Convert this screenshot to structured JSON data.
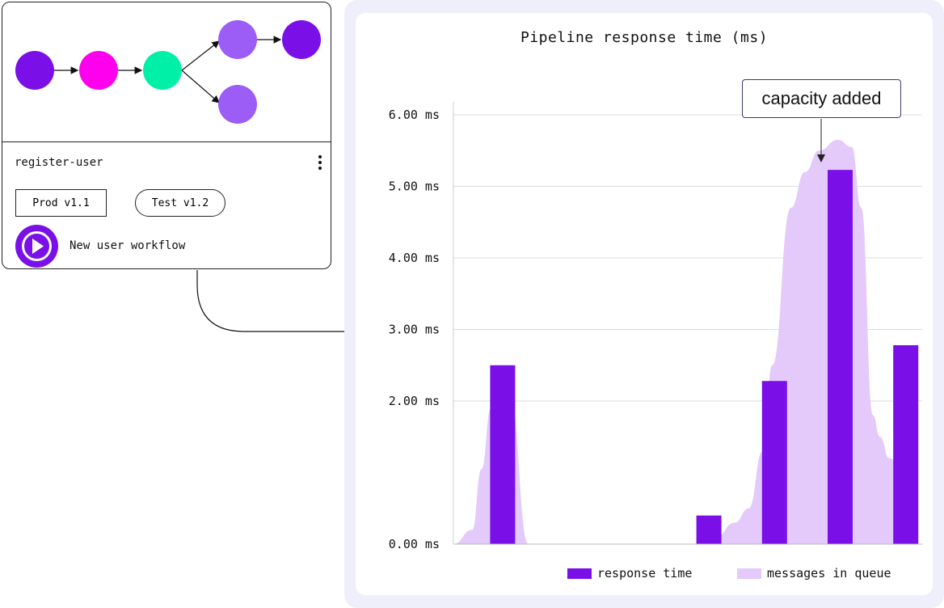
{
  "workflow_card": {
    "name": "register-user",
    "versions": [
      {
        "label": "Prod v1.1"
      },
      {
        "label": "Test v1.2"
      }
    ],
    "description": "New user workflow",
    "graph_nodes": [
      {
        "id": "n1",
        "color": "#7a0fe8"
      },
      {
        "id": "n2",
        "color": "#ff00ee"
      },
      {
        "id": "n3",
        "color": "#00f0a8"
      },
      {
        "id": "n4",
        "color": "#9c5cf6"
      },
      {
        "id": "n5",
        "color": "#7a0fe8"
      },
      {
        "id": "n6",
        "color": "#9c5cf6"
      }
    ]
  },
  "chart_title": "Pipeline response time (ms)",
  "annotation": "capacity added",
  "colors": {
    "bar": "#7a0fe8",
    "area": "#e3cafb",
    "grid": "#dddddd"
  },
  "chart_data": {
    "type": "bar",
    "title": "Pipeline response time (ms)",
    "xlabel": "",
    "ylabel": "",
    "ylim": [
      0,
      6
    ],
    "y_ticks": [
      "0.00 ms",
      "2.00 ms",
      "3.00 ms",
      "4.00 ms",
      "5.00 ms",
      "6.00 ms"
    ],
    "y_tick_values": [
      0,
      2,
      3,
      4,
      5,
      6
    ],
    "legend_position": "bottom-right",
    "series": [
      {
        "name": "response time",
        "type": "bar",
        "x": [
          0.105,
          0.545,
          0.685,
          0.825,
          0.965
        ],
        "values": [
          2.5,
          0.4,
          2.28,
          5.23,
          2.78
        ]
      },
      {
        "name": "messages in queue",
        "type": "area",
        "x": [
          0,
          0.04,
          0.06,
          0.08,
          0.12,
          0.16,
          0.52,
          0.56,
          0.6,
          0.63,
          0.66,
          0.68,
          0.72,
          0.75,
          0.78,
          0.82,
          0.85,
          0.87,
          0.895,
          0.91,
          0.93,
          0.96,
          0.99
        ],
        "values": [
          0,
          0.2,
          1.05,
          1.9,
          2.1,
          0,
          0,
          0.1,
          0.3,
          0.5,
          1.3,
          2.5,
          4.7,
          5.2,
          5.5,
          5.65,
          5.55,
          4.7,
          1.8,
          1.5,
          1.2,
          1.0,
          1.0
        ]
      }
    ]
  },
  "legend": [
    {
      "label": "response time"
    },
    {
      "label": "messages in queue"
    }
  ]
}
